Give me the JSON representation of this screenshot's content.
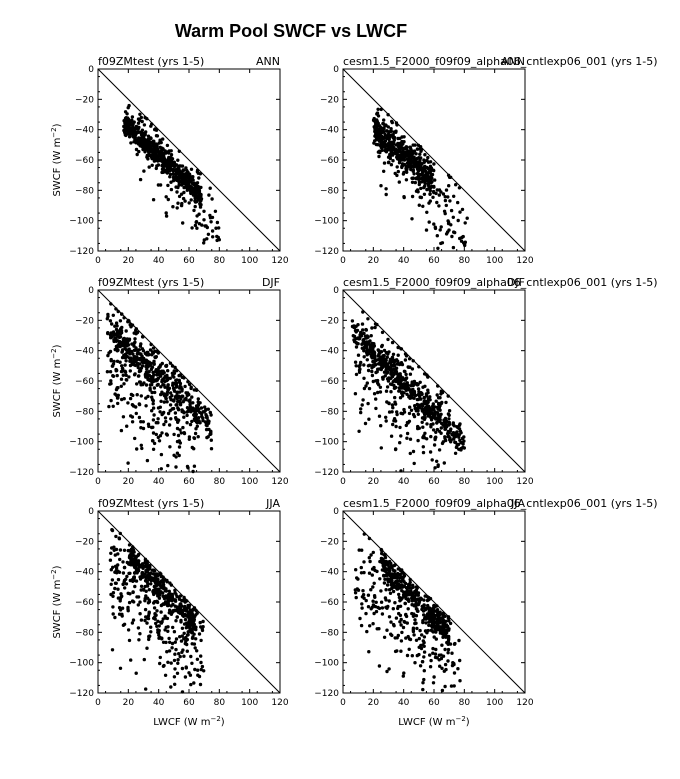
{
  "figure": {
    "title": "Warm Pool SWCF vs LWCF"
  },
  "chart_data": [
    {
      "type": "scatter",
      "row": 0,
      "col": 0,
      "left_title": "f09ZMtest (yrs 1-5)",
      "right_title": "ANN",
      "xlabel": "",
      "ylabel": "SWCF (W m-2)",
      "xlim": [
        0,
        120
      ],
      "ylim": [
        -120,
        0
      ],
      "xticks": [
        0,
        20,
        40,
        60,
        80,
        100,
        120
      ],
      "yticks": [
        0,
        -20,
        -40,
        -60,
        -80,
        -100,
        -120
      ],
      "reference_line": [
        [
          0,
          0
        ],
        [
          120,
          -120
        ]
      ],
      "seed": 11,
      "clusters": [
        {
          "n": 520,
          "x": [
            17,
            68
          ],
          "y0": -35,
          "slope": -0.95,
          "spread": 4
        },
        {
          "n": 150,
          "x": [
            25,
            80
          ],
          "y0": -40,
          "slope": -1.2,
          "spread": 14
        }
      ]
    },
    {
      "type": "scatter",
      "row": 0,
      "col": 1,
      "left_title": "cesm1.5_F2000_f09f09_alpha06_cntlexp06_001 (yrs 1-5)",
      "right_title": "ANN",
      "xlabel": "",
      "ylabel": "",
      "xlim": [
        0,
        120
      ],
      "ylim": [
        -120,
        0
      ],
      "xticks": [
        0,
        20,
        40,
        60,
        80,
        100,
        120
      ],
      "yticks": [
        0,
        -20,
        -40,
        -60,
        -80,
        -100,
        -120
      ],
      "reference_line": [
        [
          0,
          0
        ],
        [
          120,
          -120
        ]
      ],
      "seed": 23,
      "clusters": [
        {
          "n": 420,
          "x": [
            20,
            60
          ],
          "y0": -38,
          "slope": -0.9,
          "spread": 5
        },
        {
          "n": 170,
          "x": [
            22,
            82
          ],
          "y0": -42,
          "slope": -1.15,
          "spread": 15
        }
      ]
    },
    {
      "type": "scatter",
      "row": 1,
      "col": 0,
      "left_title": "f09ZMtest (yrs 1-5)",
      "right_title": "DJF",
      "xlabel": "",
      "ylabel": "SWCF (W m-2)",
      "xlim": [
        0,
        120
      ],
      "ylim": [
        -120,
        0
      ],
      "xticks": [
        0,
        20,
        40,
        60,
        80,
        100,
        120
      ],
      "yticks": [
        0,
        -20,
        -40,
        -60,
        -80,
        -100,
        -120
      ],
      "reference_line": [
        [
          0,
          0
        ],
        [
          120,
          -120
        ]
      ],
      "seed": 37,
      "clusters": [
        {
          "n": 380,
          "x": [
            8,
            75
          ],
          "y0": -27,
          "slope": -0.95,
          "spread": 6
        },
        {
          "n": 320,
          "x": [
            6,
            65
          ],
          "y0": -40,
          "slope": -0.9,
          "spread": 22
        }
      ]
    },
    {
      "type": "scatter",
      "row": 1,
      "col": 1,
      "left_title": "cesm1.5_F2000_f09f09_alpha06_cntlexp06_001 (yrs 1-5)",
      "right_title": "DJF",
      "xlabel": "",
      "ylabel": "",
      "xlim": [
        0,
        120
      ],
      "ylim": [
        -120,
        0
      ],
      "xticks": [
        0,
        20,
        40,
        60,
        80,
        100,
        120
      ],
      "yticks": [
        0,
        -20,
        -40,
        -60,
        -80,
        -100,
        -120
      ],
      "reference_line": [
        [
          0,
          0
        ],
        [
          120,
          -120
        ]
      ],
      "seed": 51,
      "clusters": [
        {
          "n": 420,
          "x": [
            6,
            80
          ],
          "y0": -27,
          "slope": -1.0,
          "spread": 5
        },
        {
          "n": 280,
          "x": [
            8,
            70
          ],
          "y0": -40,
          "slope": -0.95,
          "spread": 20
        }
      ]
    },
    {
      "type": "scatter",
      "row": 2,
      "col": 0,
      "left_title": "f09ZMtest (yrs 1-5)",
      "right_title": "JJA",
      "xlabel": "LWCF (W m-2)",
      "ylabel": "SWCF (W m-2)",
      "xlim": [
        0,
        120
      ],
      "ylim": [
        -120,
        0
      ],
      "xticks": [
        0,
        20,
        40,
        60,
        80,
        100,
        120
      ],
      "yticks": [
        0,
        -20,
        -40,
        -60,
        -80,
        -100,
        -120
      ],
      "reference_line": [
        [
          0,
          0
        ],
        [
          120,
          -120
        ]
      ],
      "seed": 67,
      "clusters": [
        {
          "n": 360,
          "x": [
            20,
            65
          ],
          "y0": -30,
          "slope": -1.0,
          "spread": 5
        },
        {
          "n": 300,
          "x": [
            8,
            70
          ],
          "y0": -42,
          "slope": -0.95,
          "spread": 17
        }
      ]
    },
    {
      "type": "scatter",
      "row": 2,
      "col": 1,
      "left_title": "cesm1.5_F2000_f09f09_alpha06_cntlexp06_001 (yrs 1-5)",
      "right_title": "JJA",
      "xlabel": "LWCF (W m-2)",
      "ylabel": "",
      "xlim": [
        0,
        120
      ],
      "ylim": [
        -120,
        0
      ],
      "xticks": [
        0,
        20,
        40,
        60,
        80,
        100,
        120
      ],
      "yticks": [
        0,
        -20,
        -40,
        -60,
        -80,
        -100,
        -120
      ],
      "reference_line": [
        [
          0,
          0
        ],
        [
          120,
          -120
        ]
      ],
      "seed": 83,
      "clusters": [
        {
          "n": 360,
          "x": [
            25,
            70
          ],
          "y0": -35,
          "slope": -1.0,
          "spread": 5
        },
        {
          "n": 260,
          "x": [
            8,
            78
          ],
          "y0": -42,
          "slope": -0.95,
          "spread": 17
        }
      ]
    }
  ]
}
